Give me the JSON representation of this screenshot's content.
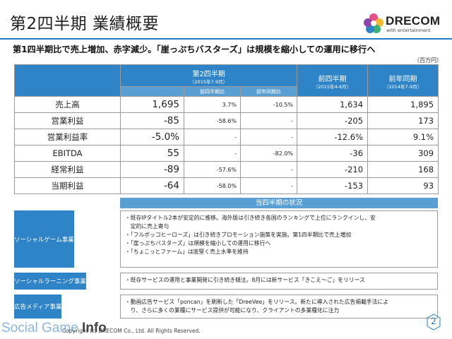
{
  "header": {
    "title": "第2四半期 業績概要",
    "subtitle": "第1四半期比で売上増加、赤字減少。「崖っぷちバスターズ」は規模を縮小しての運用に移行へ",
    "unit": "（百万円）"
  },
  "logo": {
    "wordmark": "DRECOM",
    "tagline": "with entertainment",
    "colors": [
      "#e94e8a",
      "#f7b731",
      "#3bb273",
      "#2e84c6",
      "#8e44ad"
    ]
  },
  "table": {
    "q2_label": "第2四半期",
    "q2_period": "（2015年7-9月）",
    "prev_q_label": "前四半期",
    "prev_q_period": "（2015年4-6月）",
    "prev_y_label": "前年同期",
    "prev_y_period": "（2014年7-9月）",
    "vs_prev_q": "前四半期比",
    "vs_prev_y": "前年同期比",
    "rows": [
      {
        "label": "売上高",
        "q2": "1,695",
        "vs_q": "3.7%",
        "vs_y": "-10.5%",
        "prev_q": "1,634",
        "prev_y": "1,895"
      },
      {
        "label": "営業利益",
        "q2": "-85",
        "vs_q": "-58.6%",
        "vs_y": "-",
        "prev_q": "-205",
        "prev_y": "173"
      },
      {
        "label": "営業利益率",
        "q2": "-5.0%",
        "vs_q": "-",
        "vs_y": "-",
        "prev_q": "-12.6%",
        "prev_y": "9.1%"
      },
      {
        "label": "EBITDA",
        "q2": "55",
        "vs_q": "-",
        "vs_y": "-82.0%",
        "prev_q": "-36",
        "prev_y": "309"
      },
      {
        "label": "経常利益",
        "q2": "-89",
        "vs_q": "-57.6%",
        "vs_y": "-",
        "prev_q": "-210",
        "prev_y": "168"
      },
      {
        "label": "当期利益",
        "q2": "-64",
        "vs_q": "-58.0%",
        "vs_y": "-",
        "prev_q": "-153",
        "prev_y": "93"
      }
    ]
  },
  "status": {
    "header": "当四半期の状況",
    "segments": [
      {
        "label": "ソーシャルゲーム事業",
        "lines": [
          "・既存IPタイトル2本が安定的に推移。海外版は引き続き各国のランキングで上位にランクインし、安",
          "　定的に売上寄与",
          "・「フルボッコヒーローズ」は引き続きプロモーション施策を実施。第1四半期比で売上増加",
          "・「崖っぷちバスターズ」は規模を縮小しての運用に移行へ",
          "・「ちょこっとファーム」は底堅く売上水準を維持"
        ]
      },
      {
        "label": "ソーシャルラーニング事業",
        "lines": [
          "・既存サービスの運用と事業開発に引き続き傾注。8月には新サービス「きこえ～ご」をリリース"
        ]
      },
      {
        "label": "広告メディア事業",
        "lines": [
          "・動画広告サービス「poncan」を刷新した「DreeVee」をリリース。新たに導入された広告掲載手法によ",
          "　り、さらに多くの業種にサービス提供が可能になり、クライアントの多業種化に注力"
        ]
      }
    ]
  },
  "footer": {
    "watermark_light": "Social Game ",
    "watermark_bold": "Info",
    "copyright": "Copyright (c) DRECOM Co., Ltd. All Rights Reserved.",
    "page": "2"
  }
}
